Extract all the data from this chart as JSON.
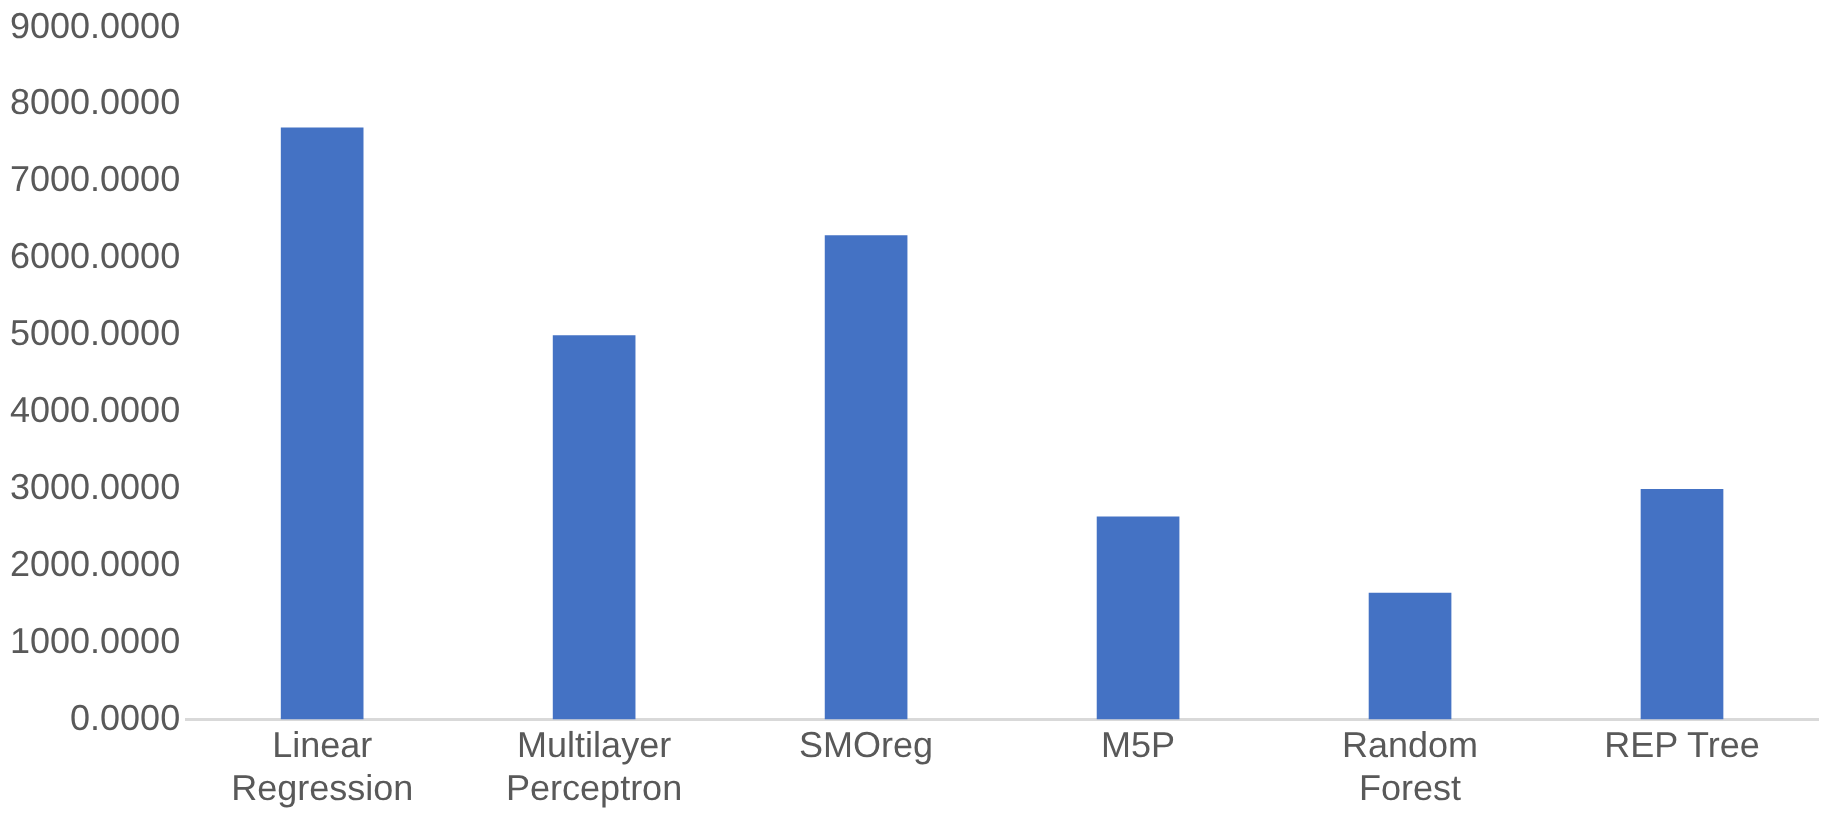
{
  "chart_data": {
    "type": "bar",
    "categories": [
      "Linear Regression",
      "Multilayer Perceptron",
      "SMOreg",
      "M5P",
      "Random Forest",
      "REP Tree"
    ],
    "values": [
      7700,
      5000,
      6300,
      2640,
      1650,
      3000
    ],
    "color": "#4472c4",
    "ylim": [
      0,
      9000
    ],
    "yticks": [
      {
        "value": 0,
        "label": "0.0000"
      },
      {
        "value": 1000,
        "label": "1000.0000"
      },
      {
        "value": 2000,
        "label": "2000.0000"
      },
      {
        "value": 3000,
        "label": "3000.0000"
      },
      {
        "value": 4000,
        "label": "4000.0000"
      },
      {
        "value": 5000,
        "label": "5000.0000"
      },
      {
        "value": 6000,
        "label": "6000.0000"
      },
      {
        "value": 7000,
        "label": "7000.0000"
      },
      {
        "value": 8000,
        "label": "8000.0000"
      },
      {
        "value": 9000,
        "label": "9000.0000"
      }
    ],
    "grid": false,
    "legend": false
  }
}
